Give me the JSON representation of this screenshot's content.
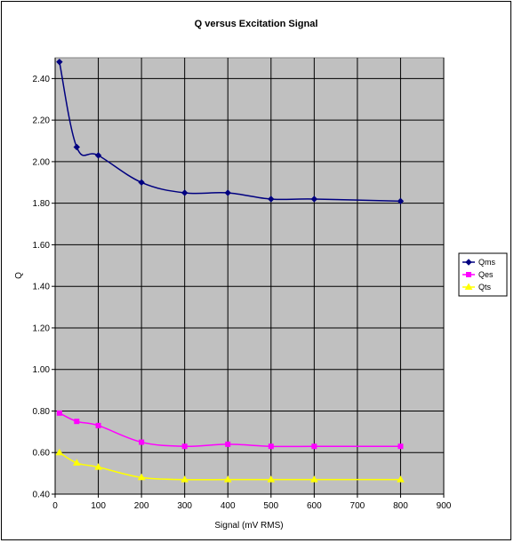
{
  "chart_data": {
    "type": "line",
    "title": "Q versus Excitation Signal",
    "xlabel": "Signal (mV RMS)",
    "ylabel": "Q",
    "xlim": [
      0,
      900
    ],
    "ylim": [
      0.4,
      2.5
    ],
    "x_ticks": [
      0,
      100,
      200,
      300,
      400,
      500,
      600,
      700,
      800,
      900
    ],
    "y_ticks": [
      0.4,
      0.6,
      0.8,
      1.0,
      1.2,
      1.4,
      1.6,
      1.8,
      2.0,
      2.2,
      2.4
    ],
    "x_tick_labels": [
      "0",
      "100",
      "200",
      "300",
      "400",
      "500",
      "600",
      "700",
      "800",
      "900"
    ],
    "y_tick_labels": [
      "0.40",
      "0.60",
      "0.80",
      "1.00",
      "1.20",
      "1.40",
      "1.60",
      "1.80",
      "2.00",
      "2.20",
      "2.40"
    ],
    "grid": true,
    "plot_background": "#c0c0c0",
    "legend_position": "right",
    "x": [
      10,
      50,
      100,
      200,
      300,
      400,
      500,
      600,
      800
    ],
    "series": [
      {
        "name": "Qms",
        "color": "#000080",
        "marker": "diamond",
        "values": [
          2.48,
          2.07,
          2.03,
          1.9,
          1.85,
          1.85,
          1.82,
          1.82,
          1.81
        ]
      },
      {
        "name": "Qes",
        "color": "#ff00ff",
        "marker": "square",
        "values": [
          0.79,
          0.75,
          0.73,
          0.65,
          0.63,
          0.64,
          0.63,
          0.63,
          0.63
        ]
      },
      {
        "name": "Qts",
        "color": "#ffff00",
        "marker": "triangle",
        "values": [
          0.6,
          0.55,
          0.53,
          0.48,
          0.47,
          0.47,
          0.47,
          0.47,
          0.47
        ]
      }
    ]
  }
}
